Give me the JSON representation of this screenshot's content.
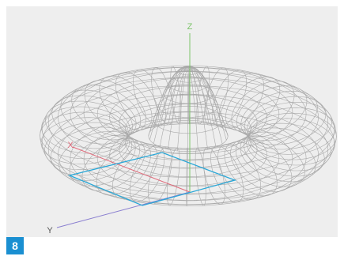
{
  "figure_number": "8",
  "axes": {
    "z": "Z",
    "x": "X",
    "y": "Y"
  }
}
